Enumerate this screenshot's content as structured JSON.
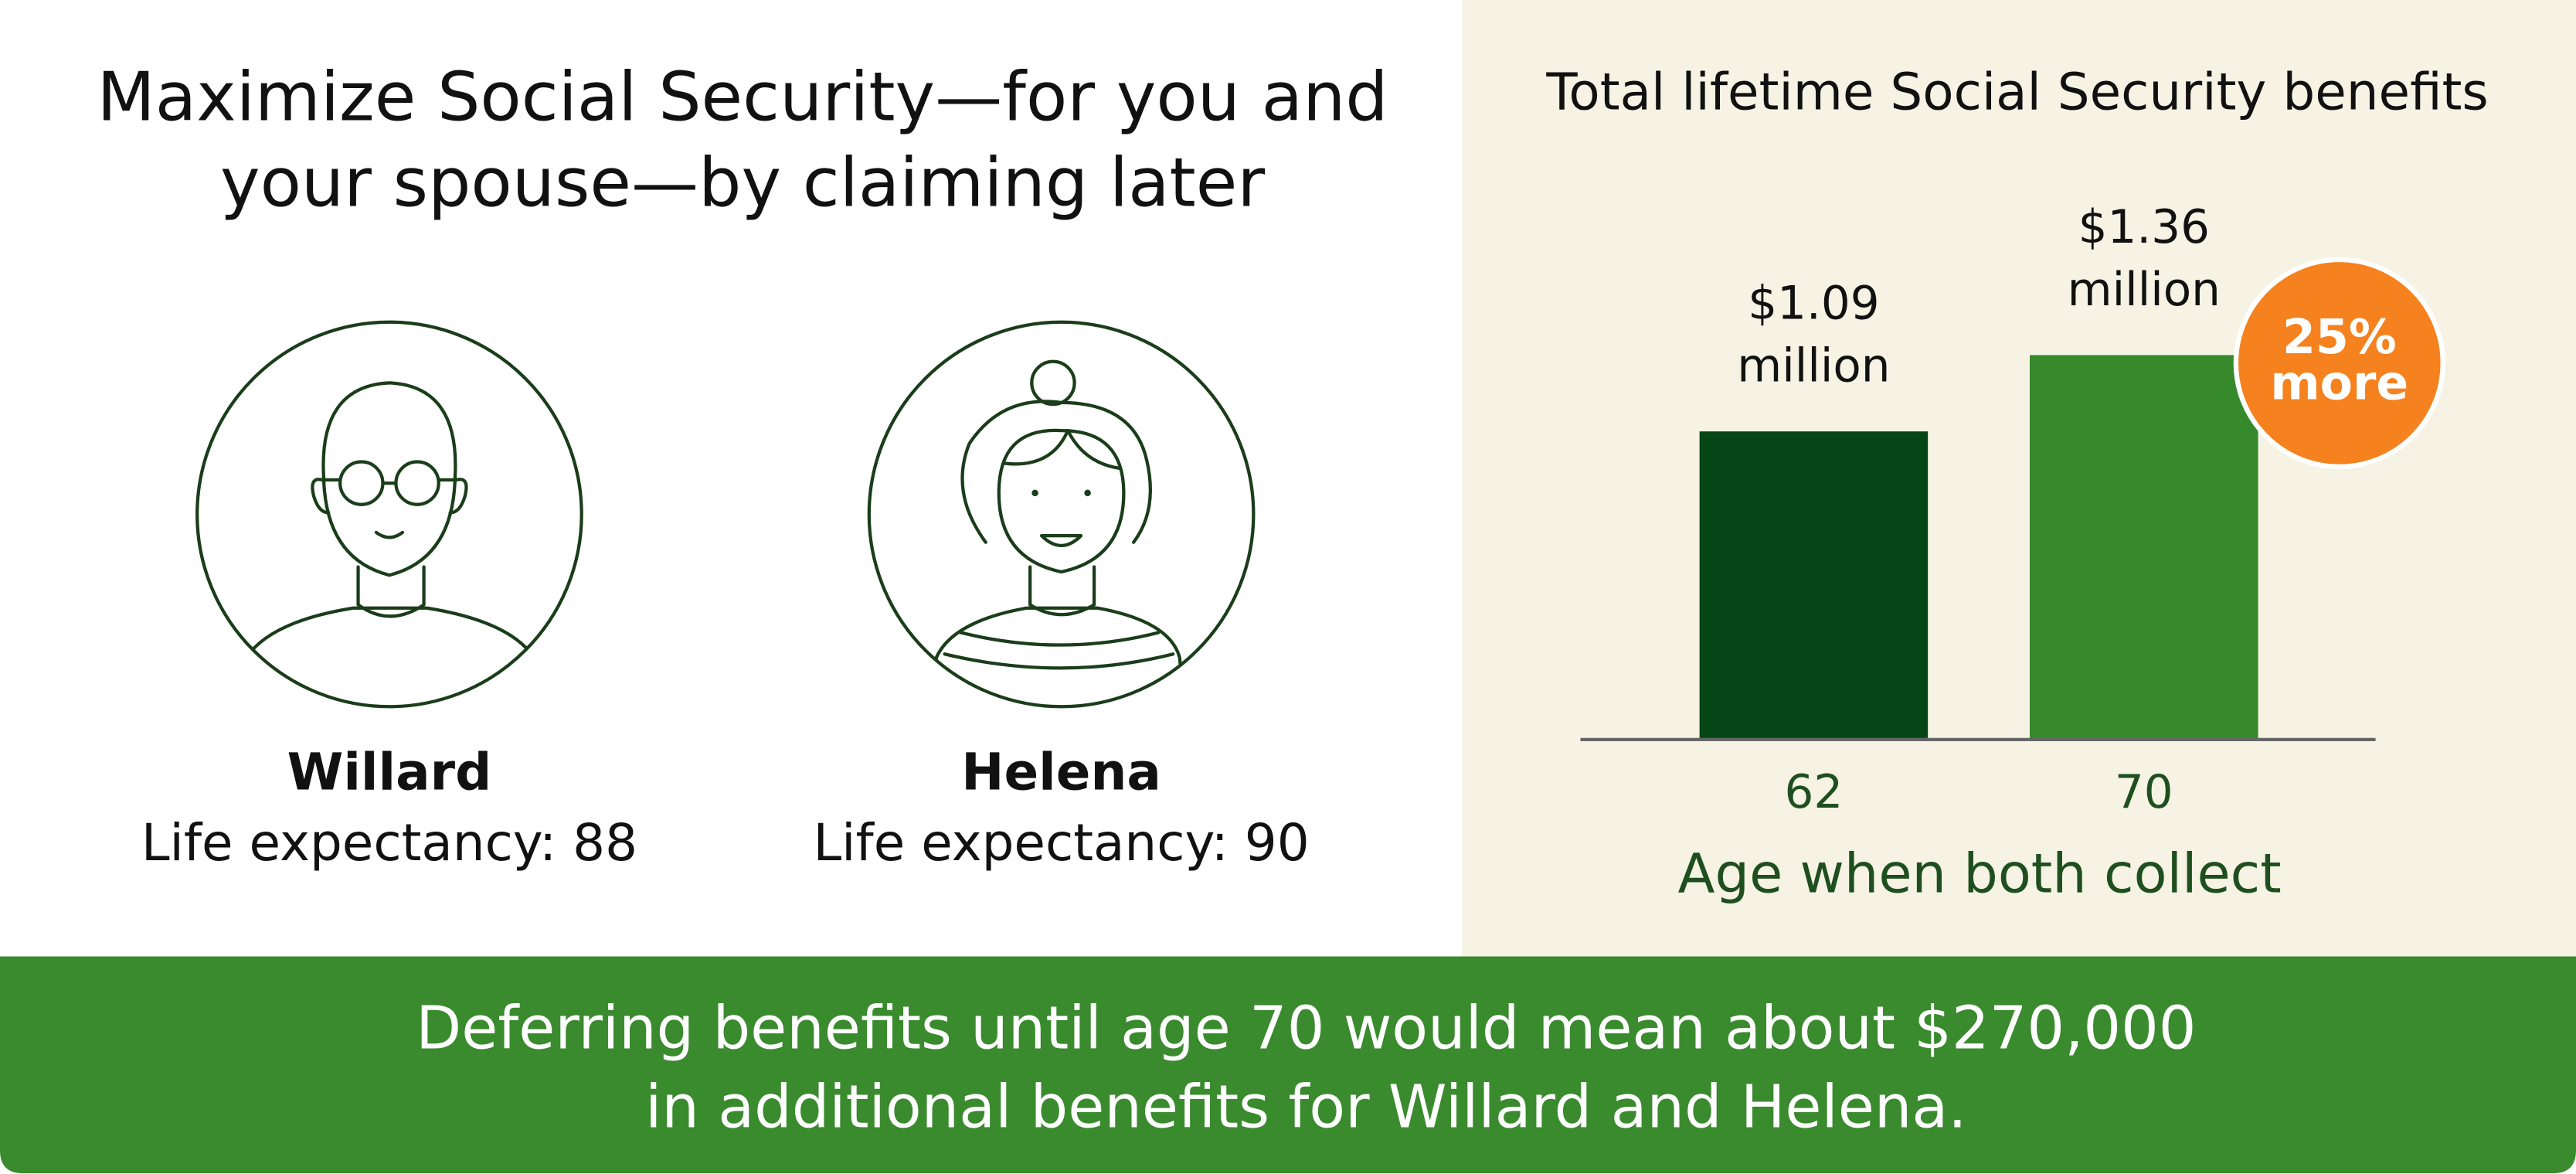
{
  "title": [
    "Maximize Social Security—for you and",
    "your spouse—by claiming later"
  ],
  "people": [
    {
      "name": "Willard",
      "detail": "Life expectancy: 88"
    },
    {
      "name": "Helena",
      "detail": "Life expectancy: 90"
    }
  ],
  "chart_data": {
    "type": "bar",
    "title": "Total lifetime Social Security benefits",
    "categories": [
      "62",
      "70"
    ],
    "values": [
      1.09,
      1.36
    ],
    "value_labels": [
      [
        "$1.09",
        "million"
      ],
      [
        "$1.36",
        "million"
      ]
    ],
    "colors": [
      "#064516",
      "#368a2b"
    ],
    "ylim": [
      0,
      1.5
    ],
    "x_label": "Age when both collect",
    "annotation": [
      "25%",
      "more"
    ],
    "annotation_color": "#f5821f"
  },
  "footer": [
    "Deferring benefits until age 70 would mean about $270,000",
    "in additional benefits for Willard and Helena."
  ]
}
